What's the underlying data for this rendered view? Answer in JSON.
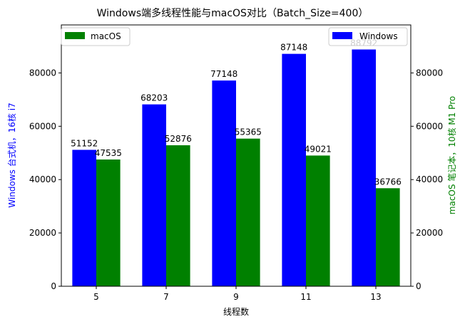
{
  "chart_data": {
    "type": "bar",
    "title": "Windows端多线程性能与macOS对比（Batch_Size=400）",
    "xlabel": "线程数",
    "categories": [
      "5",
      "7",
      "9",
      "11",
      "13"
    ],
    "series": [
      {
        "name": "Windows",
        "axis": "left",
        "color": "#0000ff",
        "values": [
          51152,
          68203,
          77148,
          87148,
          88792
        ],
        "labels": [
          "51152",
          "68203",
          "77148",
          "87148",
          "88792"
        ]
      },
      {
        "name": "macOS",
        "axis": "right",
        "color": "#008000",
        "values": [
          47535,
          52876,
          55365,
          49021,
          36766
        ],
        "labels": [
          "47535",
          "52876",
          "55365",
          "49021",
          "36766"
        ]
      }
    ],
    "left_axis": {
      "label": "Windows 台式机，16核 i7",
      "color": "#0000ff",
      "ylim": [
        0,
        98000
      ],
      "ticks": [
        "0",
        "20000",
        "40000",
        "60000",
        "80000"
      ]
    },
    "right_axis": {
      "label": "macOS 笔记本，10核 M1 Pro",
      "color": "#008000",
      "ylim": [
        0,
        98000
      ],
      "ticks": [
        "0",
        "20000",
        "40000",
        "60000",
        "80000"
      ]
    },
    "legends": [
      {
        "position": "top-left",
        "entries": [
          "macOS"
        ]
      },
      {
        "position": "top-right",
        "entries": [
          "Windows"
        ]
      }
    ],
    "grid": false
  }
}
